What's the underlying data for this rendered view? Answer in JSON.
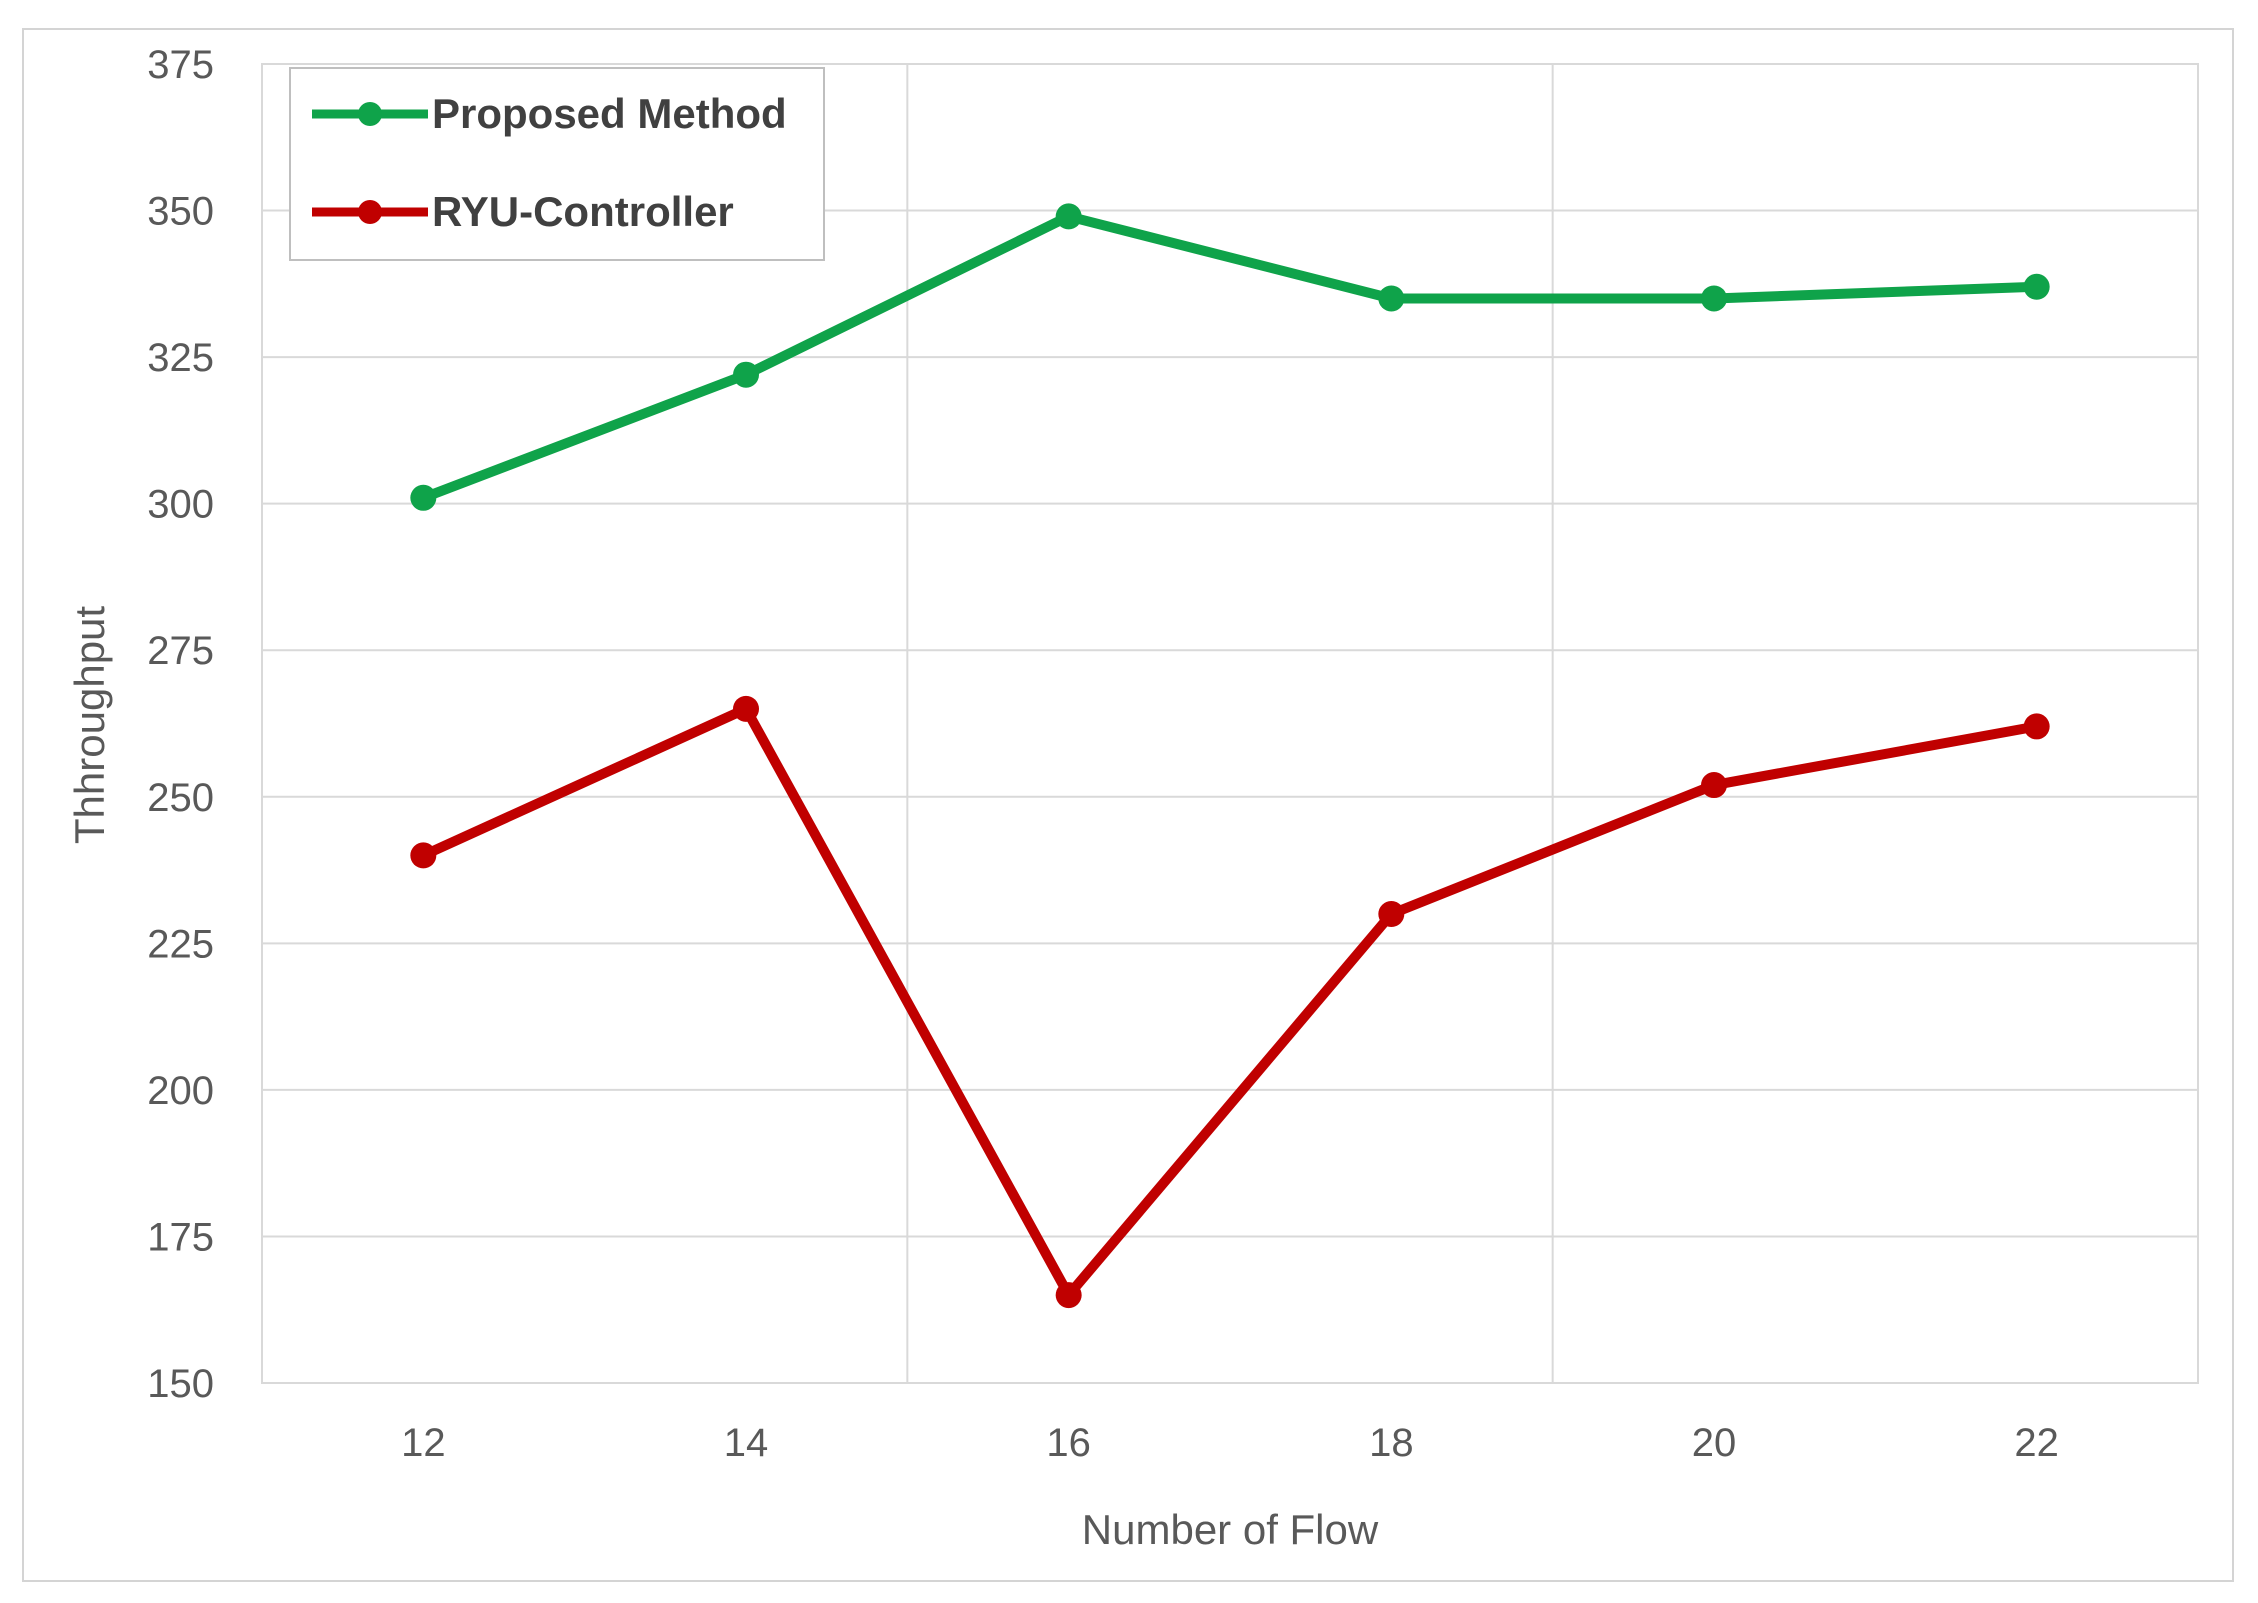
{
  "chart_data": {
    "type": "line",
    "xlabel": "Number of Flow",
    "ylabel": "Thhroughput",
    "x": [
      12,
      14,
      16,
      18,
      20,
      22
    ],
    "ylim": [
      150,
      375
    ],
    "yticks": [
      150,
      175,
      200,
      225,
      250,
      275,
      300,
      325,
      350,
      375
    ],
    "grid": true,
    "legend_position": "top-left",
    "series": [
      {
        "name": "Proposed Method",
        "color": "#0fa34a",
        "values": [
          301,
          322,
          349,
          335,
          335,
          337
        ]
      },
      {
        "name": "RYU-Controller",
        "color": "#c00000",
        "values": [
          240,
          265,
          165,
          230,
          252,
          262
        ]
      }
    ]
  }
}
